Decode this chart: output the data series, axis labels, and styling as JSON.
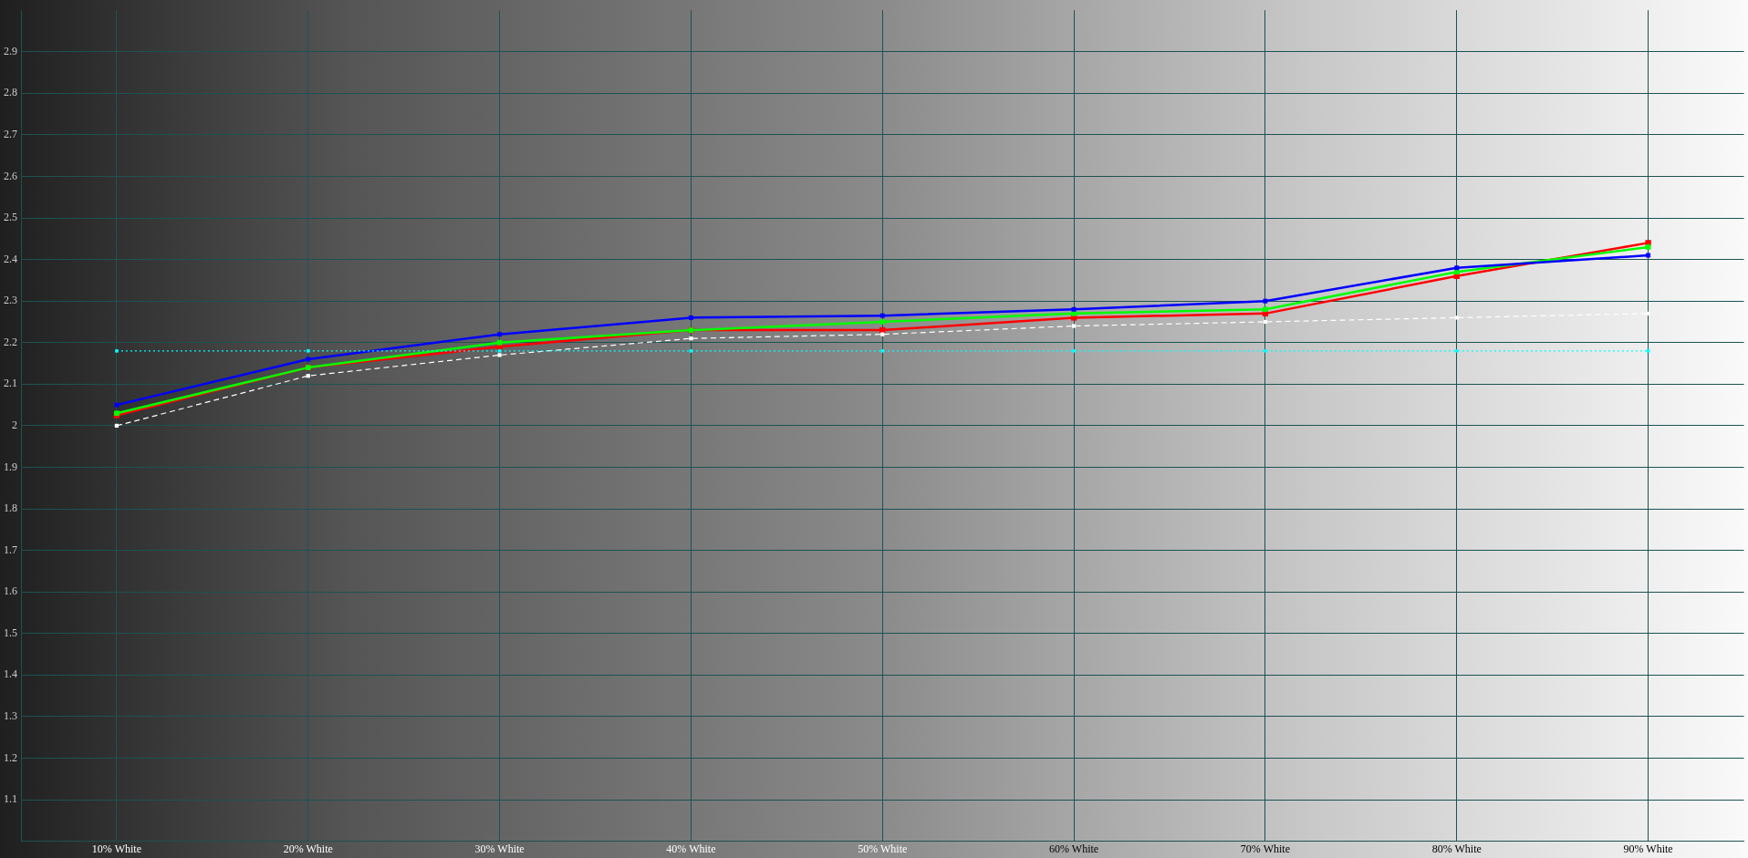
{
  "chart_data": {
    "type": "line",
    "categories": [
      "10% White",
      "20% White",
      "30% White",
      "40% White",
      "50% White",
      "60% White",
      "70% White",
      "80% White",
      "90% White"
    ],
    "series": [
      {
        "color": "#ff0000",
        "values": [
          2.025,
          2.14,
          2.19,
          2.23,
          2.23,
          2.26,
          2.27,
          2.36,
          2.44
        ]
      },
      {
        "color": "#00ff00",
        "values": [
          2.03,
          2.14,
          2.2,
          2.23,
          2.25,
          2.27,
          2.28,
          2.37,
          2.43
        ]
      },
      {
        "color": "#0000ff",
        "values": [
          2.05,
          2.16,
          2.22,
          2.26,
          2.265,
          2.28,
          2.3,
          2.38,
          2.41
        ]
      },
      {
        "color": "#ffffff",
        "line_style": "dashed",
        "values": [
          2.0,
          2.12,
          2.17,
          2.21,
          2.22,
          2.24,
          2.25,
          2.26,
          2.27
        ]
      },
      {
        "color": "#00ffff",
        "line_style": "dotted",
        "values": [
          2.18,
          2.18,
          2.18,
          2.18,
          2.18,
          2.18,
          2.18,
          2.18,
          2.18
        ]
      }
    ],
    "ylim": [
      1,
      3
    ],
    "yticks": [
      1.1,
      1.2,
      1.3,
      1.4,
      1.5,
      1.6,
      1.7,
      1.8,
      1.9,
      2,
      2.1,
      2.2,
      2.3,
      2.4,
      2.5,
      2.6,
      2.7,
      2.8,
      2.9
    ],
    "grid": true,
    "legend": false,
    "marker": "square",
    "line_style": "solid"
  }
}
